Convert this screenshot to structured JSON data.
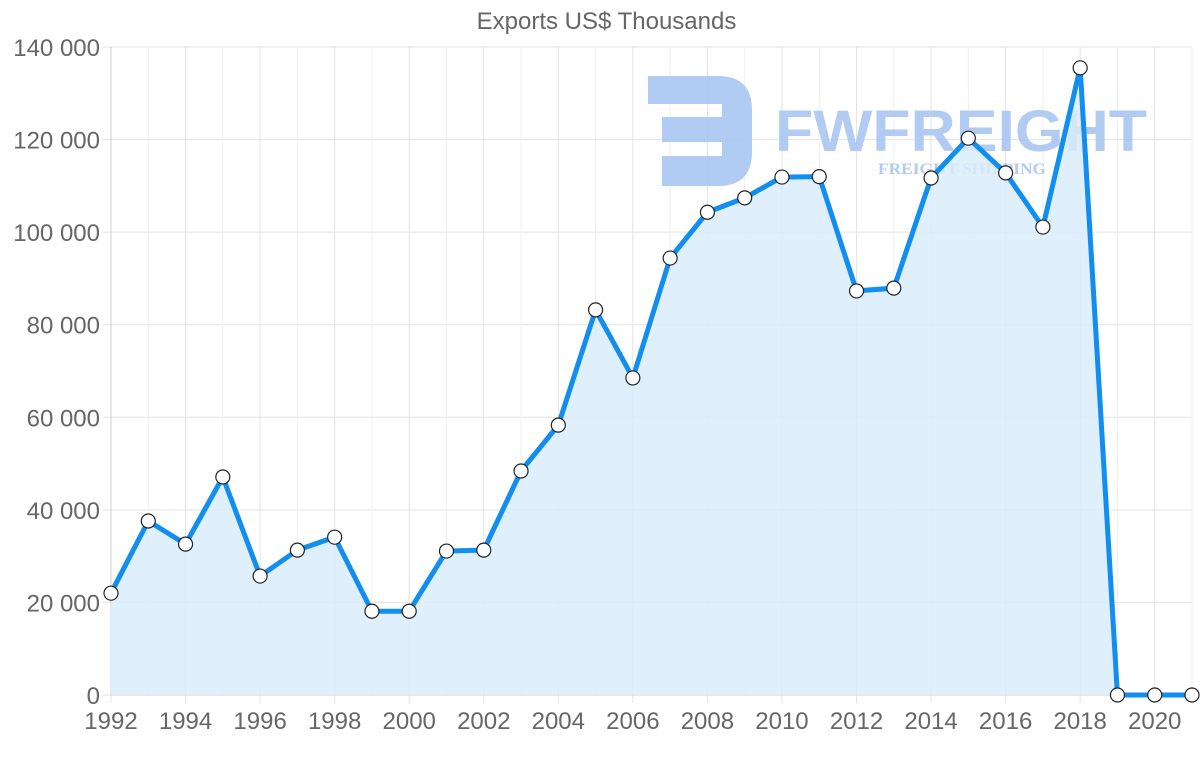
{
  "chart_data": {
    "type": "area",
    "title": "Exports US$ Thousands",
    "xlabel": "",
    "ylabel": "",
    "x": [
      1992,
      1993,
      1994,
      1995,
      1996,
      1997,
      1998,
      1999,
      2000,
      2001,
      2002,
      2003,
      2004,
      2005,
      2006,
      2007,
      2008,
      2009,
      2010,
      2011,
      2012,
      2013,
      2014,
      2015,
      2016,
      2017,
      2018,
      2019,
      2020,
      2021
    ],
    "series": [
      {
        "name": "Exports US$ Thousands",
        "values": [
          22000,
          37600,
          32600,
          47100,
          25700,
          31300,
          34100,
          18100,
          18100,
          31100,
          31300,
          48400,
          58300,
          83200,
          68500,
          94400,
          104300,
          107400,
          111900,
          112000,
          87300,
          87900,
          111700,
          120300,
          112800,
          101100,
          135500,
          0,
          0,
          0
        ]
      }
    ],
    "ylim": [
      0,
      140000
    ],
    "y_ticks": [
      "0",
      "20 000",
      "40 000",
      "60 000",
      "80 000",
      "100 000",
      "120 000",
      "140 000"
    ],
    "x_ticks": [
      "1992",
      "1994",
      "1996",
      "1998",
      "2000",
      "2002",
      "2004",
      "2006",
      "2008",
      "2010",
      "2012",
      "2014",
      "2016",
      "2018",
      "2020"
    ],
    "grid": true,
    "legend": "none",
    "colors": {
      "line": "#118ef0",
      "fill": "#d9ecfc",
      "point_fill": "#ffffff",
      "point_stroke": "#222222",
      "grid": "#e3e3e3"
    }
  },
  "watermark": {
    "brand": "FWFREIGHT",
    "tagline": "FREIGHT SHIPPING",
    "color": "#a9c6f1"
  }
}
